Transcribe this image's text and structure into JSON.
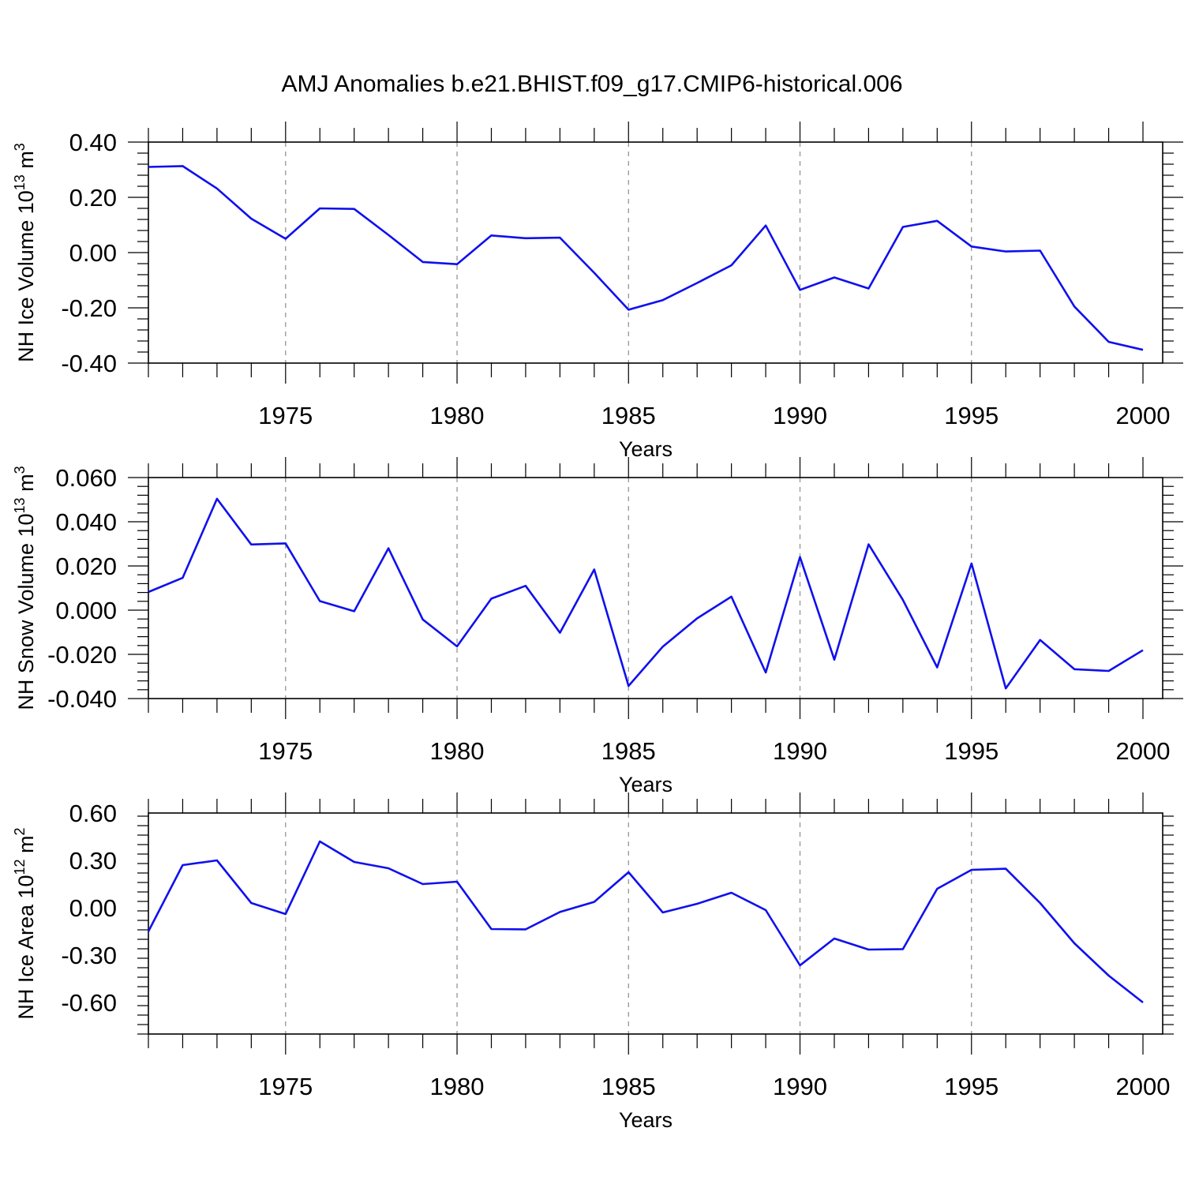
{
  "chart_data": {
    "title": "AMJ Anomalies b.e21.BHIST.f09_g17.CMIP6-historical.006",
    "line_color": "#1010ee",
    "panels": [
      {
        "type": "line",
        "ylabel_prefix": "NH Ice Volume 10",
        "ylabel_exp": "13",
        "ylabel_unit": " m",
        "ylabel_unit_exp": "3",
        "xlabel": "Years",
        "xlim": [
          1971,
          2000
        ],
        "ylim": [
          -0.4,
          0.4
        ],
        "yticks": [
          "0.40",
          "0.20",
          "0.00",
          "-0.20",
          "-0.40"
        ],
        "ytick_values": [
          0.4,
          0.2,
          0.0,
          -0.2,
          -0.4
        ],
        "xticks": [
          "1975",
          "1980",
          "1985",
          "1990",
          "1995",
          "2000"
        ],
        "xtick_values": [
          1975,
          1980,
          1985,
          1990,
          1995,
          2000
        ],
        "grid": "vertical-dashed",
        "x": [
          1971,
          1972,
          1973,
          1974,
          1975,
          1976,
          1977,
          1978,
          1979,
          1980,
          1981,
          1982,
          1983,
          1984,
          1985,
          1986,
          1987,
          1988,
          1989,
          1990,
          1991,
          1992,
          1993,
          1994,
          1995,
          1996,
          1997,
          1998,
          1999,
          2000
        ],
        "values": [
          0.31,
          0.313,
          0.232,
          0.123,
          0.05,
          0.16,
          0.158,
          0.064,
          -0.034,
          -0.042,
          0.062,
          0.052,
          0.054,
          -0.073,
          -0.207,
          -0.172,
          -0.11,
          -0.046,
          0.098,
          -0.135,
          -0.09,
          -0.13,
          0.093,
          0.115,
          0.022,
          0.004,
          0.007,
          -0.195,
          -0.323,
          -0.352
        ]
      },
      {
        "type": "line",
        "ylabel_prefix": "NH Snow Volume 10",
        "ylabel_exp": "13",
        "ylabel_unit": " m",
        "ylabel_unit_exp": "3",
        "xlabel": "Years",
        "xlim": [
          1971,
          2000
        ],
        "ylim": [
          -0.04,
          0.06
        ],
        "yticks": [
          "0.060",
          "0.040",
          "0.020",
          "0.000",
          "-0.020",
          "-0.040"
        ],
        "ytick_values": [
          0.06,
          0.04,
          0.02,
          0.0,
          -0.02,
          -0.04
        ],
        "xticks": [
          "1975",
          "1980",
          "1985",
          "1990",
          "1995",
          "2000"
        ],
        "xtick_values": [
          1975,
          1980,
          1985,
          1990,
          1995,
          2000
        ],
        "grid": "vertical-dashed",
        "x": [
          1971,
          1972,
          1973,
          1974,
          1975,
          1976,
          1977,
          1978,
          1979,
          1980,
          1981,
          1982,
          1983,
          1984,
          1985,
          1986,
          1987,
          1988,
          1989,
          1990,
          1991,
          1992,
          1993,
          1994,
          1995,
          1996,
          1997,
          1998,
          1999,
          2000
        ],
        "values": [
          0.0082,
          0.0146,
          0.0504,
          0.0297,
          0.0302,
          0.0041,
          -0.0005,
          0.028,
          -0.0042,
          -0.0164,
          0.0052,
          0.011,
          -0.0102,
          0.0184,
          -0.0343,
          -0.0165,
          -0.0037,
          0.0061,
          -0.0282,
          0.024,
          -0.0224,
          0.0298,
          0.0046,
          -0.0259,
          0.0211,
          -0.0354,
          -0.0135,
          -0.0267,
          -0.0275,
          -0.0181
        ]
      },
      {
        "type": "line",
        "ylabel_prefix": "NH Ice Area 10",
        "ylabel_exp": "12",
        "ylabel_unit": " m",
        "ylabel_unit_exp": "2",
        "xlabel": "Years",
        "xlim": [
          1971,
          2000
        ],
        "ylim": [
          -0.8,
          0.6
        ],
        "yticks": [
          "0.60",
          "0.30",
          "0.00",
          "-0.30",
          "-0.60"
        ],
        "ytick_values": [
          0.6,
          0.3,
          0.0,
          -0.3,
          -0.6
        ],
        "xticks": [
          "1975",
          "1980",
          "1985",
          "1990",
          "1995",
          "2000"
        ],
        "xtick_values": [
          1975,
          1980,
          1985,
          1990,
          1995,
          2000
        ],
        "grid": "vertical-dashed",
        "x": [
          1971,
          1972,
          1973,
          1974,
          1975,
          1976,
          1977,
          1978,
          1979,
          1980,
          1981,
          1982,
          1983,
          1984,
          1985,
          1986,
          1987,
          1988,
          1989,
          1990,
          1991,
          1992,
          1993,
          1994,
          1995,
          1996,
          1997,
          1998,
          1999,
          2000
        ],
        "values": [
          -0.15,
          0.27,
          0.3,
          0.03,
          -0.04,
          0.42,
          0.29,
          0.25,
          0.15,
          0.165,
          -0.135,
          -0.137,
          -0.027,
          0.037,
          0.225,
          -0.03,
          0.025,
          0.095,
          -0.015,
          -0.365,
          -0.195,
          -0.265,
          -0.262,
          0.12,
          0.24,
          0.247,
          0.03,
          -0.225,
          -0.43,
          -0.6
        ]
      }
    ]
  }
}
